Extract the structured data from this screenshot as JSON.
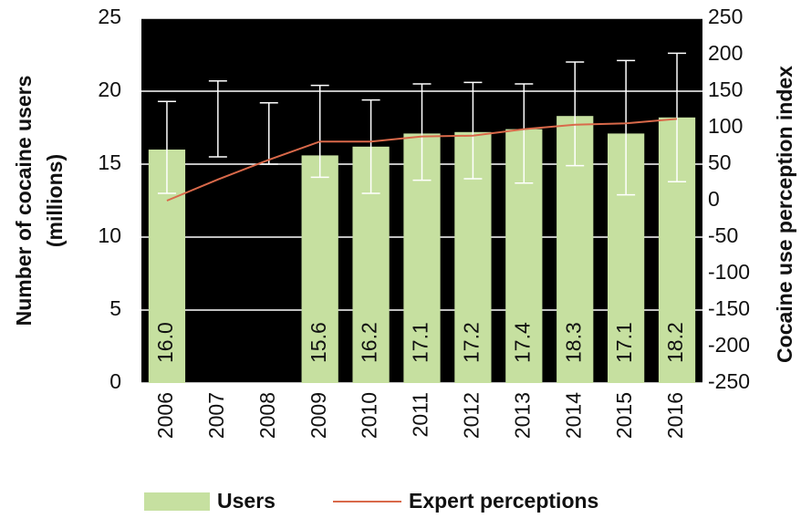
{
  "chart_data": {
    "type": "bar",
    "ylabel": [
      "Number of cocaine users",
      "(millions)"
    ],
    "y2label": "Cocaine use perception index",
    "categories": [
      "2006",
      "2007",
      "2008",
      "2009",
      "2010",
      "2011",
      "2012",
      "2013",
      "2014",
      "2015",
      "2016"
    ],
    "series": [
      {
        "name": "Users",
        "color": "#c6e0a0",
        "values": [
          16.0,
          null,
          null,
          15.6,
          16.2,
          17.1,
          17.2,
          17.4,
          18.3,
          17.1,
          18.2
        ],
        "value_labels": [
          "16.0",
          null,
          null,
          "15.6",
          "16.2",
          "17.1",
          "17.2",
          "17.4",
          "18.3",
          "17.1",
          "18.2"
        ],
        "error_low": [
          13.0,
          15.5,
          15.0,
          14.1,
          13.0,
          13.9,
          14.0,
          13.7,
          14.9,
          12.9,
          13.8
        ],
        "error_high": [
          19.3,
          20.7,
          19.2,
          20.4,
          19.4,
          20.5,
          20.6,
          20.5,
          22.0,
          22.1,
          22.6
        ],
        "error_color": "#ffffff"
      },
      {
        "name": "Expert perceptions",
        "color": "#d9694a",
        "axis": "y2",
        "values": [
          0,
          29,
          56,
          81,
          81,
          88,
          89,
          98,
          104,
          106,
          112
        ]
      }
    ],
    "ylim": [
      0,
      25
    ],
    "yticks": [
      0,
      5,
      10,
      15,
      20,
      25
    ],
    "y2lim": [
      -250,
      250
    ],
    "y2ticks": [
      -250,
      -200,
      -150,
      -100,
      -50,
      0,
      50,
      100,
      150,
      200,
      250
    ],
    "grid": true,
    "plot_background": "#000000",
    "grid_color": "#ffffff",
    "legend": "bottom"
  }
}
